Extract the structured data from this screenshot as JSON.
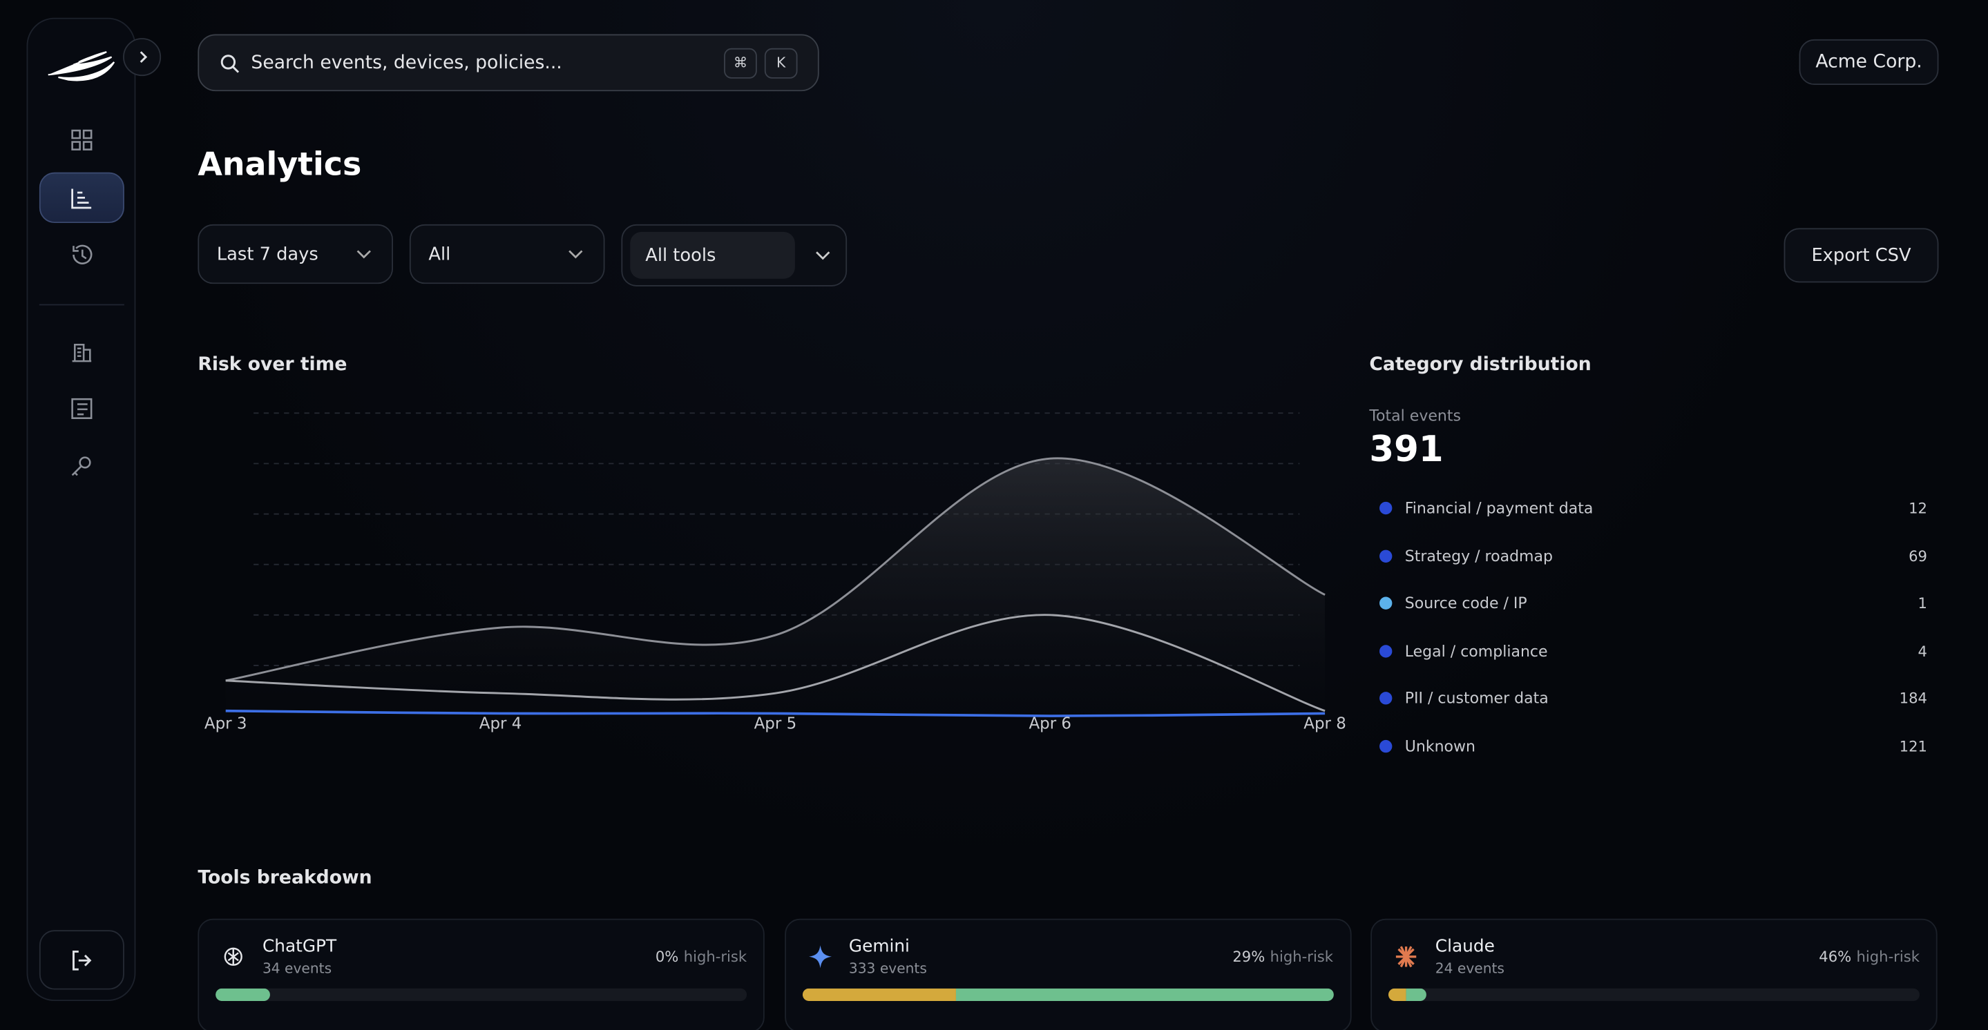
{
  "search": {
    "placeholder": "Search events, devices, policies...",
    "keys": [
      "⌘",
      "K"
    ]
  },
  "org": "Acme Corp.",
  "page_title": "Analytics",
  "filters": [
    "Last 7 days",
    "All",
    "All tools"
  ],
  "export": "Export CSV",
  "chart_data": {
    "type": "line",
    "title": "Risk over time",
    "categories": [
      "Apr 3",
      "Apr 4",
      "Apr 5",
      "Apr 6",
      "Apr 8"
    ],
    "series": [
      {
        "color": "#8d8f96",
        "values": [
          0.7,
          1.75,
          1.6,
          5.1,
          2.4
        ]
      },
      {
        "color": "#a3a5ab",
        "values": [
          0.7,
          0.45,
          0.45,
          2.0,
          0.1
        ]
      },
      {
        "color": "#3d6fe6",
        "values": [
          0.1,
          0.05,
          0.05,
          0,
          0.05
        ]
      }
    ],
    "ylim": [
      0,
      6
    ],
    "yticks": [
      1,
      2,
      3,
      4,
      5,
      6
    ],
    "grid": true
  },
  "category_distribution": {
    "title": "Category distribution",
    "total_label": "Total events",
    "total": 391,
    "items": [
      {
        "label": "Financial / payment data",
        "value": 12,
        "color": "#2a4ad6"
      },
      {
        "label": "Strategy / roadmap",
        "value": 69,
        "color": "#2a4ad6"
      },
      {
        "label": "Source code / IP",
        "value": 1,
        "color": "#5cb2ec"
      },
      {
        "label": "Legal / compliance",
        "value": 4,
        "color": "#2a4ad6"
      },
      {
        "label": "PII / customer data",
        "value": 184,
        "color": "#2a4ad6"
      },
      {
        "label": "Unknown",
        "value": 121,
        "color": "#2a4ad6"
      }
    ]
  },
  "tools": {
    "title": "Tools breakdown",
    "items": [
      {
        "name": "ChatGPT",
        "events": 34,
        "events_label": "34 events",
        "high_risk": 0,
        "high_risk_label": "0%",
        "risk_text": "high-risk"
      },
      {
        "name": "Gemini",
        "events": 333,
        "events_label": "333 events",
        "high_risk": 29,
        "high_risk_label": "29%",
        "risk_text": "high-risk"
      },
      {
        "name": "Claude",
        "events": 24,
        "events_label": "24 events",
        "high_risk": 46,
        "high_risk_label": "46%",
        "risk_text": "high-risk"
      }
    ]
  }
}
